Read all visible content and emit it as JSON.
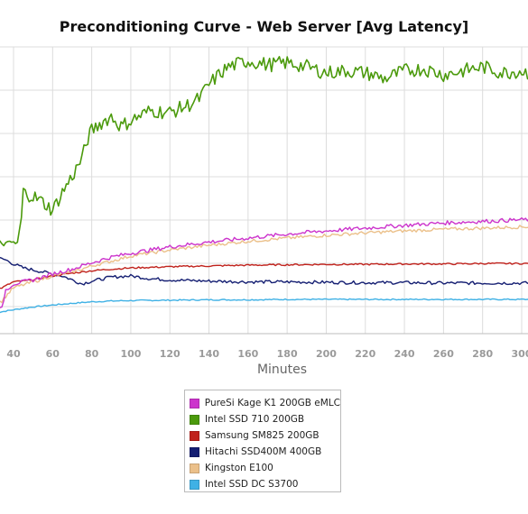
{
  "chart_data": {
    "type": "line",
    "title": "Preconditioning Curve - Web Server [Avg Latency]",
    "xlabel": "Minutes",
    "ylabel": "",
    "xlim": [
      30,
      310
    ],
    "x_ticks": [
      40,
      60,
      80,
      100,
      120,
      140,
      160,
      180,
      200,
      220,
      240,
      260,
      280,
      300
    ],
    "ylim": [
      0,
      7.2
    ],
    "grid": true,
    "legend_position": "bottom-center",
    "series": [
      {
        "name": "PureSi Kage K1 200GB eMLC",
        "color": "#cc33cc",
        "x": [
          30,
          34,
          36,
          40,
          50,
          60,
          70,
          80,
          90,
          100,
          120,
          140,
          160,
          180,
          200,
          220,
          240,
          260,
          280,
          300,
          310
        ],
        "y": [
          0.6,
          0.62,
          1.1,
          1.25,
          1.35,
          1.5,
          1.62,
          1.78,
          1.92,
          2.02,
          2.18,
          2.3,
          2.4,
          2.5,
          2.58,
          2.65,
          2.72,
          2.78,
          2.82,
          2.86,
          2.88
        ]
      },
      {
        "name": "Intel SSD 710 200GB",
        "color": "#4b9a0c",
        "x": [
          30,
          35,
          40,
          42,
          44,
          45,
          50,
          55,
          60,
          65,
          70,
          75,
          78,
          80,
          85,
          90,
          95,
          100,
          110,
          120,
          130,
          135,
          140,
          145,
          150,
          160,
          170,
          180,
          190,
          200,
          210,
          220,
          230,
          240,
          250,
          260,
          270,
          280,
          290,
          300,
          310
        ],
        "y": [
          2.35,
          2.25,
          2.3,
          2.2,
          2.9,
          3.55,
          3.45,
          3.3,
          3.1,
          3.55,
          3.95,
          4.4,
          4.9,
          5.1,
          5.3,
          5.45,
          5.2,
          5.35,
          5.6,
          5.55,
          5.75,
          5.9,
          6.25,
          6.5,
          6.7,
          6.85,
          6.75,
          6.8,
          6.7,
          6.55,
          6.6,
          6.55,
          6.4,
          6.6,
          6.65,
          6.5,
          6.6,
          6.7,
          6.55,
          6.6,
          6.45
        ]
      },
      {
        "name": "Samsung SM825 200GB",
        "color": "#c0221c",
        "x": [
          30,
          34,
          40,
          50,
          60,
          70,
          80,
          90,
          100,
          120,
          140,
          160,
          180,
          200,
          220,
          240,
          260,
          280,
          300,
          310
        ],
        "y": [
          1.1,
          1.15,
          1.3,
          1.35,
          1.45,
          1.52,
          1.58,
          1.62,
          1.65,
          1.68,
          1.7,
          1.72,
          1.73,
          1.74,
          1.74,
          1.75,
          1.75,
          1.76,
          1.76,
          1.76
        ]
      },
      {
        "name": "Hitachi SSD400M 400GB",
        "color": "#141e72",
        "x": [
          30,
          32,
          36,
          40,
          45,
          50,
          55,
          60,
          65,
          70,
          75,
          80,
          90,
          100,
          110,
          120,
          140,
          160,
          180,
          200,
          220,
          240,
          260,
          280,
          300,
          310
        ],
        "y": [
          1.95,
          1.9,
          1.85,
          1.75,
          1.65,
          1.6,
          1.55,
          1.5,
          1.45,
          1.35,
          1.25,
          1.32,
          1.42,
          1.45,
          1.38,
          1.35,
          1.32,
          1.3,
          1.3,
          1.29,
          1.28,
          1.28,
          1.27,
          1.27,
          1.27,
          1.27
        ]
      },
      {
        "name": "Kingston E100",
        "color": "#ebc08a",
        "x": [
          30,
          34,
          38,
          40,
          50,
          60,
          70,
          80,
          90,
          100,
          120,
          140,
          160,
          180,
          200,
          220,
          240,
          260,
          280,
          300,
          310
        ],
        "y": [
          0.75,
          0.82,
          1.05,
          1.15,
          1.3,
          1.45,
          1.55,
          1.7,
          1.82,
          1.95,
          2.1,
          2.22,
          2.32,
          2.4,
          2.47,
          2.53,
          2.58,
          2.62,
          2.65,
          2.68,
          2.7
        ]
      },
      {
        "name": "Intel SSD DC S3700",
        "color": "#3fb1e5",
        "x": [
          30,
          34,
          40,
          50,
          60,
          70,
          80,
          90,
          100,
          120,
          140,
          160,
          180,
          200,
          220,
          240,
          260,
          280,
          300,
          310
        ],
        "y": [
          0.5,
          0.55,
          0.6,
          0.67,
          0.72,
          0.76,
          0.8,
          0.82,
          0.83,
          0.84,
          0.85,
          0.85,
          0.86,
          0.86,
          0.86,
          0.86,
          0.86,
          0.86,
          0.86,
          0.86
        ]
      }
    ]
  }
}
